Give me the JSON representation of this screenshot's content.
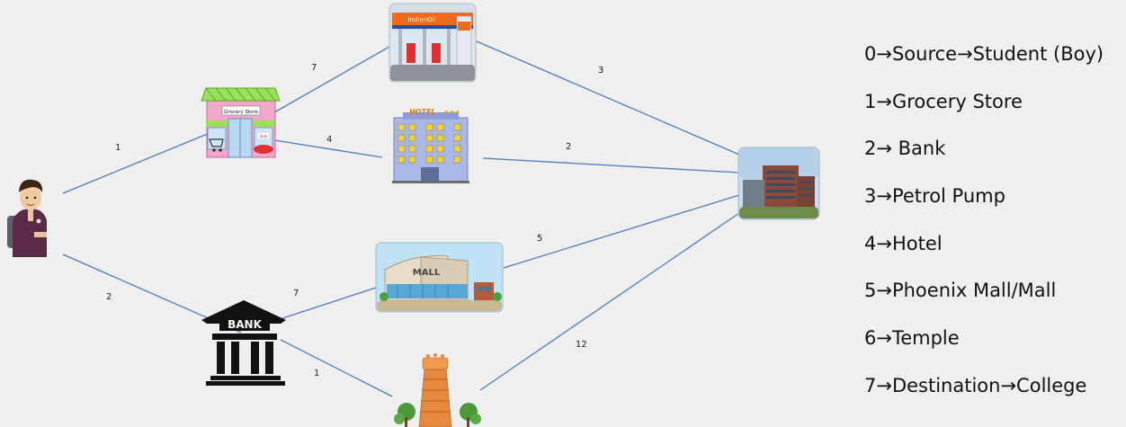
{
  "diagram": {
    "nodes": [
      {
        "id": "student",
        "icon": "student-boy-icon"
      },
      {
        "id": "grocery",
        "icon": "grocery-store-icon",
        "sign": "Grocery Store",
        "sale": "Sale"
      },
      {
        "id": "bank",
        "icon": "bank-icon",
        "sign": "BANK"
      },
      {
        "id": "petrol",
        "icon": "petrol-pump-icon",
        "sign": "IndianOil"
      },
      {
        "id": "hotel",
        "icon": "hotel-icon",
        "sign": "HOTEL"
      },
      {
        "id": "mall",
        "icon": "mall-icon",
        "sign": "MALL"
      },
      {
        "id": "temple",
        "icon": "temple-icon"
      },
      {
        "id": "college",
        "icon": "college-icon"
      }
    ],
    "edges": [
      {
        "from": "student",
        "to": "grocery",
        "weight": "1"
      },
      {
        "from": "student",
        "to": "bank",
        "weight": "2"
      },
      {
        "from": "grocery",
        "to": "petrol",
        "weight": "7"
      },
      {
        "from": "grocery",
        "to": "hotel",
        "weight": "4"
      },
      {
        "from": "petrol",
        "to": "college",
        "weight": "3"
      },
      {
        "from": "hotel",
        "to": "college",
        "weight": "2"
      },
      {
        "from": "bank",
        "to": "mall",
        "weight": "7"
      },
      {
        "from": "bank",
        "to": "temple",
        "weight": "1"
      },
      {
        "from": "mall",
        "to": "college",
        "weight": "5"
      },
      {
        "from": "temple",
        "to": "college",
        "weight": "12"
      }
    ]
  },
  "legend": {
    "items": [
      "0→Source→Student (Boy)",
      "1→Grocery Store",
      "2→ Bank",
      "3→Petrol Pump",
      "4→Hotel",
      "5→Phoenix Mall/Mall",
      "6→Temple",
      "7→Destination→College"
    ]
  },
  "colors": {
    "edge": "#4a7cc0",
    "background": "#efefef"
  }
}
